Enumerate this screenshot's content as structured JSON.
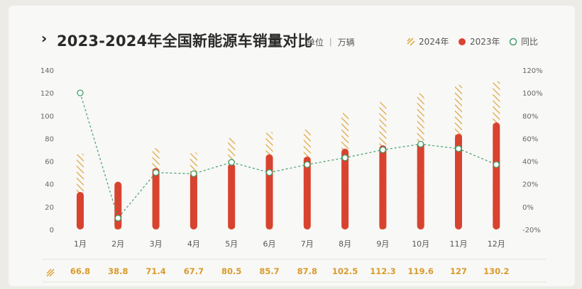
{
  "header": {
    "chevron": "›",
    "title": "2023-2024年全国新能源车销量对比",
    "unit": "单位 ｜ 万辆"
  },
  "legend": {
    "y2024": "2024年",
    "y2023": "2023年",
    "yoy": "同比"
  },
  "colors": {
    "bar2023": "#d8432f",
    "hatch2024": "#e0a23a",
    "yoy_line": "#3fa06a",
    "value_text": "#d99a2a"
  },
  "chart_data": {
    "type": "bar",
    "categories": [
      "1月",
      "2月",
      "3月",
      "4月",
      "5月",
      "6月",
      "7月",
      "8月",
      "9月",
      "10月",
      "11月",
      "12月"
    ],
    "series": [
      {
        "name": "2024年",
        "axis": "left",
        "style": "hatched",
        "values": [
          66.8,
          38.8,
          71.4,
          67.7,
          80.5,
          85.7,
          87.8,
          102.5,
          112.3,
          119.6,
          127,
          130.2
        ]
      },
      {
        "name": "2023年",
        "axis": "left",
        "style": "solid",
        "values": [
          33,
          42,
          54,
          51,
          58,
          66,
          64,
          71,
          74,
          77,
          84,
          94
        ]
      },
      {
        "name": "同比",
        "axis": "right",
        "type": "line",
        "values": [
          100,
          -10,
          30,
          29,
          39,
          30,
          37,
          43,
          50,
          55,
          51,
          37
        ]
      }
    ],
    "y_left": {
      "min": 0,
      "max": 140,
      "ticks": [
        "0",
        "20",
        "40",
        "60",
        "80",
        "100",
        "120",
        "140"
      ]
    },
    "y_right": {
      "min": -20,
      "max": 120,
      "ticks": [
        "-20%",
        "0%",
        "20%",
        "40%",
        "60%",
        "80%",
        "100%",
        "120%"
      ]
    },
    "value_row": [
      "66.8",
      "38.8",
      "71.4",
      "67.7",
      "80.5",
      "85.7",
      "87.8",
      "102.5",
      "112.3",
      "119.6",
      "127",
      "130.2"
    ]
  }
}
